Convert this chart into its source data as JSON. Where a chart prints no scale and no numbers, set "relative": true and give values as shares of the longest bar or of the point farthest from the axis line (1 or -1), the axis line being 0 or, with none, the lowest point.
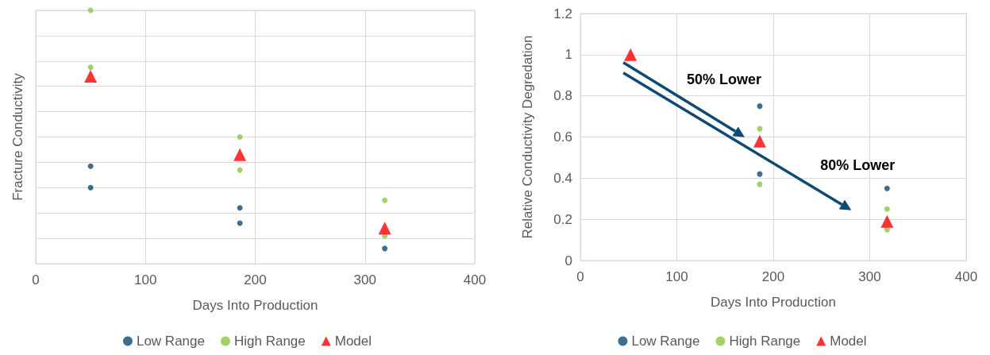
{
  "chart_data": [
    {
      "type": "scatter",
      "ylabel": "Fracture Conductivity",
      "xlabel": "Days Into Production",
      "relative": true,
      "xlim": [
        0,
        400
      ],
      "xticks": [
        0,
        100,
        200,
        300,
        400
      ],
      "grid": true,
      "legend": "bottom",
      "series": [
        {
          "name": "Low Range",
          "color": "#0e4a73",
          "marker": "circle",
          "x": [
            50,
            50,
            186,
            186,
            318
          ],
          "values": [
            0.385,
            0.3,
            0.22,
            0.16,
            0.06
          ]
        },
        {
          "name": "High Range",
          "color": "#8dc63f",
          "marker": "circle",
          "x": [
            50,
            50,
            186,
            186,
            318,
            318
          ],
          "values": [
            1.0,
            0.775,
            0.5,
            0.37,
            0.25,
            0.11
          ]
        },
        {
          "name": "Model",
          "color": "#ff0000",
          "marker": "triangle",
          "x": [
            50,
            186,
            318
          ],
          "values": [
            0.74,
            0.43,
            0.14
          ]
        }
      ]
    },
    {
      "type": "scatter",
      "ylabel": "Relative Conductivity Degredation",
      "xlabel": "Days Into Production",
      "xlim": [
        0,
        400
      ],
      "xticks": [
        0,
        100,
        200,
        300,
        400
      ],
      "ylim": [
        0,
        1.2
      ],
      "yticks": [
        0,
        0.2,
        0.4,
        0.6,
        0.8,
        1,
        1.2
      ],
      "grid": true,
      "legend": "bottom",
      "annotations": [
        "50% Lower",
        "80% Lower"
      ],
      "series": [
        {
          "name": "Low Range",
          "color": "#0e4a73",
          "marker": "circle",
          "x": [
            186,
            186,
            318
          ],
          "values": [
            0.75,
            0.42,
            0.35
          ]
        },
        {
          "name": "High Range",
          "color": "#8dc63f",
          "marker": "circle",
          "x": [
            186,
            186,
            318,
            318
          ],
          "values": [
            0.64,
            0.37,
            0.25,
            0.15
          ]
        },
        {
          "name": "Model",
          "color": "#ff0000",
          "marker": "triangle",
          "x": [
            52,
            186,
            318
          ],
          "values": [
            1.0,
            0.58,
            0.19
          ]
        }
      ]
    }
  ]
}
